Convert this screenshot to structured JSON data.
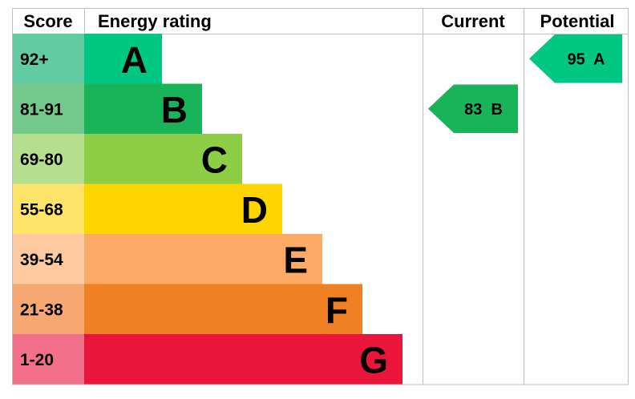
{
  "headers": {
    "score": "Score",
    "energy_rating": "Energy rating",
    "current": "Current",
    "potential": "Potential"
  },
  "chart_data": {
    "type": "bar",
    "bands": [
      {
        "score": "92+",
        "letter": "A",
        "color": "#00c781",
        "score_bg": "#63cba2"
      },
      {
        "score": "81-91",
        "letter": "B",
        "color": "#19b459",
        "score_bg": "#72c98b"
      },
      {
        "score": "69-80",
        "letter": "C",
        "color": "#8dce46",
        "score_bg": "#b6de8f"
      },
      {
        "score": "55-68",
        "letter": "D",
        "color": "#ffd500",
        "score_bg": "#ffe46b"
      },
      {
        "score": "39-54",
        "letter": "E",
        "color": "#fcaa65",
        "score_bg": "#fdc9a0"
      },
      {
        "score": "21-38",
        "letter": "F",
        "color": "#ef8023",
        "score_bg": "#f5a871"
      },
      {
        "score": "1-20",
        "letter": "G",
        "color": "#e9153b",
        "score_bg": "#f2708a"
      }
    ],
    "current": {
      "value": 83,
      "letter": "B",
      "label": "83  B",
      "color": "#19b459"
    },
    "potential": {
      "value": 95,
      "letter": "A",
      "label": "95  A",
      "color": "#00c781"
    }
  }
}
